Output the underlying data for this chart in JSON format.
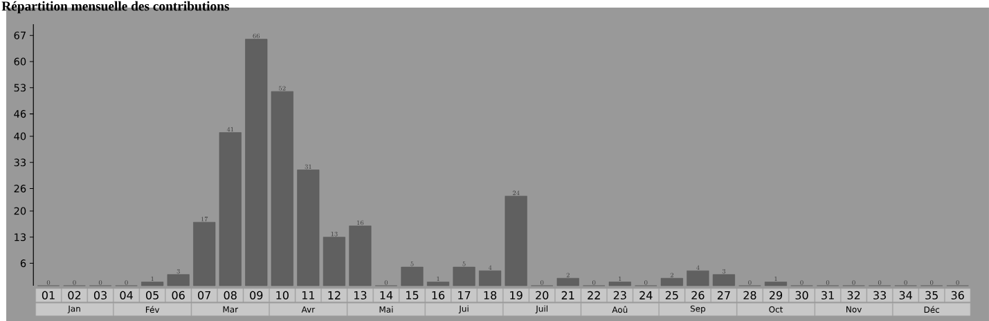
{
  "chart_data": {
    "type": "bar",
    "title": "Répartition mensuelle des contributions",
    "categories": [
      "01",
      "02",
      "03",
      "04",
      "05",
      "06",
      "07",
      "08",
      "09",
      "10",
      "11",
      "12",
      "13",
      "14",
      "15",
      "16",
      "17",
      "18",
      "19",
      "20",
      "21",
      "22",
      "23",
      "24",
      "25",
      "26",
      "27",
      "28",
      "29",
      "30",
      "31",
      "32",
      "33",
      "34",
      "35",
      "36"
    ],
    "values": [
      0,
      0,
      0,
      0,
      1,
      3,
      17,
      41,
      66,
      52,
      31,
      13,
      16,
      0,
      5,
      1,
      5,
      4,
      24,
      0,
      2,
      0,
      1,
      0,
      2,
      4,
      3,
      0,
      1,
      0,
      0,
      0,
      0,
      0,
      0,
      0
    ],
    "color": "#606060",
    "ylim": [
      0,
      70
    ],
    "yticks": [
      6,
      13,
      20,
      26,
      33,
      40,
      46,
      53,
      60,
      67
    ],
    "annotations": [
      "Jan",
      "Fév",
      "Mar",
      "Avr",
      "Mai",
      "Jui",
      "Juil",
      "Aoû",
      "Sep",
      "Oct",
      "Nov",
      "Déc"
    ],
    "data_labels": true
  }
}
